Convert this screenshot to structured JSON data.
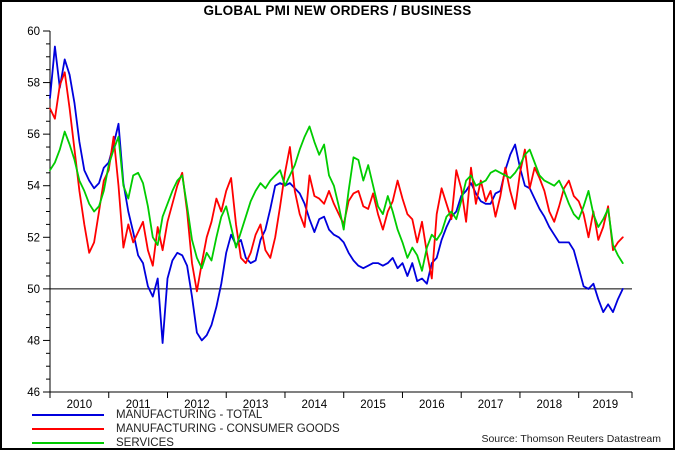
{
  "title": "GLOBAL PMI NEW ORDERS / BUSINESS",
  "source_note": "Source: Thomson Reuters Datastream",
  "chart_data": {
    "type": "line",
    "title": "GLOBAL PMI NEW ORDERS / BUSINESS",
    "xlabel": "",
    "ylabel": "",
    "x_frequency": "monthly",
    "x_range_start": "2010-01",
    "x_range_end": "2019-10",
    "x_tick_labels": [
      "2010",
      "2011",
      "2012",
      "2013",
      "2014",
      "2015",
      "2016",
      "2017",
      "2018",
      "2019"
    ],
    "ylim": [
      46,
      60
    ],
    "y_tick_labels": [
      "46",
      "48",
      "50",
      "52",
      "54",
      "56",
      "58",
      "60"
    ],
    "y_major_step": 2,
    "y_minor_step": 0.5,
    "reference_line_y": 50,
    "grid": false,
    "legend_position": "bottom-left",
    "series": [
      {
        "name": "MANUFACTURING - TOTAL",
        "color": "#0000dd",
        "values": [
          57.4,
          59.4,
          57.8,
          58.9,
          58.3,
          57.2,
          55.7,
          54.6,
          54.2,
          53.9,
          54.1,
          54.7,
          54.9,
          55.6,
          56.4,
          54.1,
          53.0,
          52.2,
          51.3,
          51.0,
          50.1,
          49.7,
          50.4,
          47.9,
          50.4,
          51.1,
          51.4,
          51.3,
          50.9,
          49.7,
          48.3,
          48.0,
          48.2,
          48.6,
          49.3,
          50.2,
          51.4,
          52.1,
          51.7,
          51.9,
          51.2,
          51.0,
          51.1,
          51.9,
          52.3,
          53.1,
          54.0,
          54.1,
          54.0,
          54.1,
          53.9,
          53.7,
          53.3,
          52.7,
          52.2,
          52.7,
          52.8,
          52.3,
          52.1,
          52.0,
          51.8,
          51.4,
          51.1,
          50.9,
          50.8,
          50.9,
          51.0,
          51.0,
          50.9,
          51.0,
          51.2,
          50.8,
          51.0,
          50.5,
          51.0,
          50.3,
          50.4,
          50.2,
          51.0,
          51.2,
          51.9,
          52.4,
          52.8,
          53.0,
          53.6,
          53.8,
          54.1,
          53.7,
          53.4,
          53.3,
          53.3,
          53.7,
          53.8,
          54.6,
          55.2,
          55.6,
          54.7,
          54.0,
          53.9,
          53.5,
          53.1,
          52.8,
          52.4,
          52.1,
          51.8,
          51.8,
          51.8,
          51.5,
          50.8,
          50.1,
          50.0,
          50.2,
          49.6,
          49.1,
          49.4,
          49.1,
          49.6,
          50.0
        ]
      },
      {
        "name": "MANUFACTURING - CONSUMER GOODS",
        "color": "#ff0000",
        "values": [
          57.0,
          56.6,
          57.9,
          58.4,
          57.0,
          55.4,
          53.8,
          52.5,
          51.4,
          51.8,
          53.0,
          54.2,
          54.6,
          55.9,
          54.0,
          51.6,
          52.5,
          51.8,
          52.2,
          52.6,
          51.5,
          50.9,
          52.4,
          51.5,
          52.6,
          53.3,
          54.0,
          54.5,
          53.0,
          51.0,
          49.9,
          51.0,
          52.0,
          52.6,
          53.5,
          53.0,
          53.8,
          54.3,
          52.5,
          51.2,
          51.0,
          51.4,
          52.1,
          52.5,
          51.5,
          51.2,
          52.0,
          53.2,
          54.5,
          55.5,
          53.8,
          52.9,
          52.4,
          54.4,
          53.6,
          53.5,
          53.3,
          53.8,
          53.3,
          52.9,
          52.5,
          53.4,
          53.7,
          53.8,
          53.2,
          53.1,
          53.7,
          52.9,
          52.3,
          53.0,
          53.4,
          54.2,
          53.5,
          52.9,
          52.7,
          51.8,
          52.6,
          51.4,
          50.4,
          52.9,
          53.9,
          53.3,
          52.7,
          54.6,
          53.9,
          52.6,
          54.7,
          53.3,
          54.2,
          53.4,
          53.8,
          52.8,
          53.6,
          54.7,
          53.8,
          53.1,
          54.5,
          55.4,
          53.9,
          54.7,
          54.3,
          53.8,
          53.0,
          52.6,
          53.2,
          53.9,
          54.2,
          53.6,
          53.4,
          52.9,
          52.0,
          53.0,
          51.9,
          52.4,
          53.2,
          51.5,
          51.8,
          52.0
        ]
      },
      {
        "name": "SERVICES",
        "color": "#00cc00",
        "values": [
          54.6,
          54.9,
          55.4,
          56.1,
          55.6,
          55.0,
          54.2,
          53.8,
          53.3,
          53.0,
          53.2,
          53.8,
          54.8,
          55.4,
          55.9,
          54.0,
          53.5,
          54.4,
          54.5,
          54.1,
          53.2,
          52.0,
          51.7,
          52.8,
          53.3,
          53.8,
          54.2,
          54.4,
          53.2,
          51.9,
          51.2,
          50.8,
          51.4,
          51.1,
          52.0,
          52.8,
          53.2,
          52.4,
          51.6,
          52.2,
          52.8,
          53.4,
          53.8,
          54.1,
          53.9,
          54.2,
          54.4,
          54.6,
          54.0,
          54.4,
          54.8,
          55.4,
          55.9,
          56.3,
          55.7,
          55.2,
          55.6,
          54.4,
          54.0,
          53.2,
          52.3,
          53.8,
          55.1,
          55.0,
          54.2,
          54.8,
          54.0,
          53.2,
          52.9,
          53.6,
          53.0,
          52.3,
          51.8,
          51.2,
          51.6,
          51.3,
          50.7,
          51.6,
          52.1,
          51.9,
          52.2,
          52.8,
          53.0,
          52.7,
          53.4,
          54.2,
          54.4,
          54.0,
          54.1,
          54.2,
          54.5,
          54.6,
          54.5,
          54.4,
          54.3,
          54.5,
          54.8,
          55.2,
          55.4,
          54.9,
          54.4,
          54.2,
          54.1,
          54.0,
          54.2,
          53.8,
          53.3,
          52.9,
          52.7,
          53.2,
          53.8,
          52.9,
          52.4,
          52.7,
          53.1,
          51.7,
          51.3,
          51.0
        ]
      }
    ]
  }
}
